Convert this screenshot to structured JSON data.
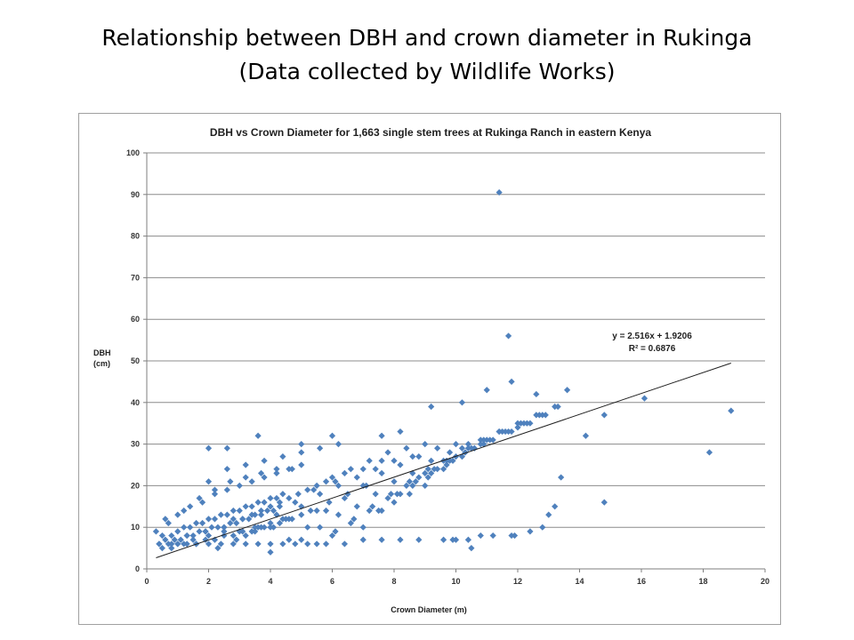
{
  "slide": {
    "title_line1": "Relationship between DBH and crown diameter in Rukinga",
    "title_line2": "(Data collected by Wildlife Works)"
  },
  "chart_data": {
    "type": "scatter",
    "title": "DBH vs Crown Diameter for 1,663 single stem trees at Rukinga Ranch in eastern Kenya",
    "xlabel": "Crown Diameter (m)",
    "ylabel_lines": [
      "DBH",
      "(cm)"
    ],
    "xlim": [
      0,
      20
    ],
    "ylim": [
      0,
      100
    ],
    "x_ticks": [
      0,
      2,
      4,
      6,
      8,
      10,
      12,
      14,
      16,
      18,
      20
    ],
    "y_ticks": [
      0,
      10,
      20,
      30,
      40,
      50,
      60,
      70,
      80,
      90,
      100
    ],
    "grid": "horizontal",
    "marker_color": "#4f81bd",
    "trendline_color": "#1f1f1f",
    "trendline": {
      "slope": 2.516,
      "intercept": 1.9206,
      "x_range": [
        0.3,
        18.9
      ],
      "equation_label": "y = 2.516x + 1.9206",
      "r2_label": "R² = 0.6876"
    },
    "series": [
      {
        "x": [
          0.3,
          0.5,
          0.6,
          0.8,
          1.0,
          1.2,
          1.4,
          1.6,
          1.8,
          2.0,
          2.2,
          2.4,
          2.6,
          2.8,
          3.0,
          3.2,
          3.4,
          3.6,
          3.8,
          4.0,
          4.2,
          4.4,
          0.4,
          0.7,
          0.9,
          1.1,
          1.3,
          1.5,
          1.7,
          1.9,
          2.1,
          2.3,
          2.5,
          2.7,
          2.9,
          3.1,
          3.3,
          3.5,
          3.7,
          3.9,
          4.1,
          4.3,
          0.5,
          0.8,
          1.0,
          1.3,
          1.6,
          1.9,
          2.2,
          2.5,
          2.8,
          3.1,
          3.4,
          3.7,
          4.0,
          4.3,
          4.6,
          0.6,
          1.0,
          1.4,
          1.8,
          2.2,
          2.6,
          3.0,
          3.4,
          3.8,
          4.2,
          4.6,
          5.0,
          0.7,
          1.2,
          1.7,
          2.2,
          2.7,
          3.2,
          3.7,
          4.2,
          4.7,
          1.0,
          1.5,
          2.0,
          2.5,
          3.0,
          3.5,
          4.0,
          4.5,
          5.0,
          5.5,
          1.3,
          1.9,
          2.5,
          3.1,
          3.7,
          4.3,
          4.9,
          5.5,
          6.1,
          2.0,
          2.6,
          3.2,
          3.8,
          4.4,
          5.0,
          5.6,
          6.2,
          2.3,
          2.9,
          3.5,
          4.1,
          4.7,
          5.3,
          5.9,
          6.5,
          7.1,
          2.8,
          3.4,
          4.0,
          4.6,
          5.2,
          5.8,
          6.4,
          7.0,
          7.6,
          3.2,
          3.8,
          4.4,
          5.0,
          5.6,
          6.2,
          6.8,
          7.4,
          8.0,
          8.6,
          3.6,
          4.2,
          4.8,
          5.4,
          6.0,
          6.6,
          7.2,
          7.8,
          8.4,
          9.0,
          4.0,
          4.6,
          5.2,
          5.8,
          6.4,
          7.0,
          7.6,
          8.2,
          8.8,
          9.4,
          10.0,
          5.0,
          5.6,
          6.2,
          6.8,
          7.4,
          8.0,
          8.6,
          9.2,
          9.8,
          10.4,
          5.5,
          6.1,
          6.7,
          7.3,
          7.9,
          8.5,
          9.1,
          9.7,
          10.3,
          10.9,
          6.0,
          6.6,
          7.2,
          7.8,
          8.4,
          9.0,
          9.6,
          10.2,
          10.8,
          11.4,
          12.0,
          7.0,
          7.6,
          8.2,
          8.8,
          9.4,
          10.0,
          10.6,
          11.2,
          11.8,
          12.4,
          7.5,
          8.1,
          8.7,
          9.3,
          9.9,
          10.5,
          11.1,
          11.7,
          12.3,
          12.9,
          8.0,
          8.6,
          9.2,
          9.8,
          10.4,
          11.0,
          11.6,
          12.2,
          12.8,
          8.5,
          9.1,
          9.7,
          10.3,
          10.9,
          11.5,
          12.1,
          12.7,
          13.3,
          9.0,
          9.6,
          10.2,
          10.8,
          11.4,
          12.0,
          12.6,
          13.2,
          2.0,
          2.6,
          3.6,
          5.0,
          6.0,
          7.6,
          8.2,
          9.2,
          10.2,
          11.0,
          11.8,
          12.6,
          13.6,
          0.4,
          0.8,
          1.2,
          1.6,
          2.0,
          2.4,
          2.8,
          3.2,
          3.6,
          4.0,
          4.4,
          4.8,
          5.2,
          5.8,
          6.4,
          7.0,
          7.6,
          8.2,
          8.8,
          9.6,
          10.0,
          10.4,
          10.8,
          11.2,
          11.8,
          12.4,
          12.8,
          13.0,
          13.2,
          13.4,
          14.2,
          14.8,
          16.1,
          18.2,
          18.9,
          11.4,
          11.7,
          14.8,
          11.9,
          10.5,
          9.9
        ],
        "y": [
          9,
          8,
          7,
          8,
          9,
          10,
          10,
          11,
          11,
          12,
          12,
          13,
          13,
          14,
          14,
          15,
          15,
          16,
          16,
          17,
          17,
          18,
          6,
          6,
          7,
          7,
          8,
          8,
          9,
          9,
          10,
          10,
          10,
          11,
          11,
          12,
          12,
          13,
          13,
          14,
          14,
          15,
          5,
          5,
          6,
          6,
          6,
          7,
          7,
          8,
          8,
          9,
          9,
          10,
          10,
          11,
          12,
          12,
          13,
          15,
          16,
          18,
          19,
          20,
          21,
          22,
          23,
          24,
          25,
          11,
          14,
          17,
          19,
          21,
          22,
          23,
          24,
          24,
          6,
          7,
          8,
          9,
          9,
          10,
          11,
          12,
          13,
          14,
          8,
          9,
          10,
          12,
          14,
          16,
          18,
          20,
          21,
          21,
          24,
          25,
          26,
          27,
          28,
          29,
          30,
          5,
          7,
          9,
          10,
          12,
          14,
          16,
          18,
          20,
          12,
          13,
          15,
          17,
          19,
          21,
          23,
          24,
          26,
          8,
          10,
          12,
          15,
          18,
          20,
          22,
          24,
          26,
          27,
          10,
          13,
          16,
          19,
          22,
          24,
          26,
          28,
          29,
          30,
          4,
          7,
          10,
          14,
          17,
          20,
          23,
          25,
          27,
          29,
          30,
          7,
          10,
          13,
          15,
          18,
          21,
          23,
          26,
          28,
          30,
          6,
          9,
          12,
          15,
          18,
          21,
          24,
          26,
          28,
          30,
          8,
          11,
          14,
          17,
          20,
          23,
          26,
          29,
          31,
          33,
          34,
          10,
          14,
          18,
          22,
          24,
          27,
          29,
          31,
          33,
          35,
          14,
          18,
          21,
          24,
          26,
          29,
          31,
          33,
          35,
          37,
          16,
          20,
          23,
          26,
          29,
          31,
          33,
          35,
          37,
          18,
          22,
          25,
          28,
          31,
          33,
          35,
          37,
          39,
          20,
          24,
          27,
          30,
          33,
          35,
          37,
          39,
          29,
          29,
          32,
          30,
          32,
          32,
          33,
          39,
          40,
          43,
          45,
          42,
          43,
          6,
          6,
          6,
          6,
          6,
          6,
          6,
          6,
          6,
          6,
          6,
          6,
          6,
          6,
          6,
          7,
          7,
          7,
          7,
          7,
          7,
          7,
          8,
          8,
          8,
          9,
          10,
          13,
          15,
          22,
          32,
          37,
          41,
          28,
          38,
          90.5,
          56,
          16,
          8,
          5,
          7
        ]
      }
    ]
  }
}
